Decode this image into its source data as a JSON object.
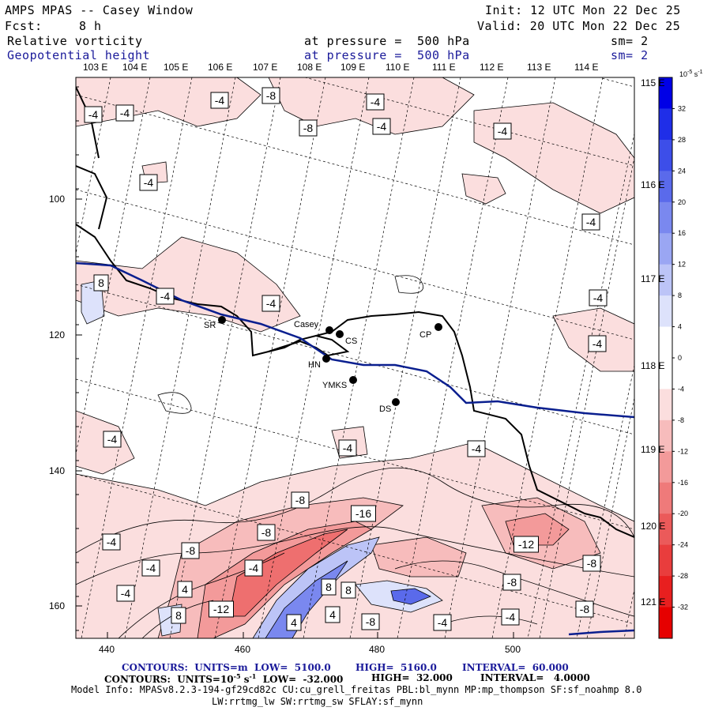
{
  "header": {
    "title": "AMPS MPAS -- Casey Window",
    "init": "Init: 12 UTC Mon 22 Dec 25",
    "fcst_label": "Fcst:",
    "fcst_value": "8 h",
    "valid": "Valid: 20 UTC Mon 22 Dec 25",
    "field1": "Relative vorticity",
    "field1_level": "at pressure =  500 hPa",
    "field1_sm": "sm= 2",
    "field2": "Geopotential height",
    "field2_level": "at pressure =  500 hPa",
    "field2_sm": "sm= 2"
  },
  "lon_top": [
    "103 E",
    "104 E",
    "105 E",
    "106 E",
    "107 E",
    "108 E",
    "109 E",
    "110 E",
    "111 E",
    "112 E",
    "113 E",
    "114 E"
  ],
  "lon_right": [
    "115 E",
    "116 E",
    "117 E",
    "118 E",
    "119 E",
    "120 E",
    "121 E"
  ],
  "x_ticks": [
    "440",
    "460",
    "480",
    "500"
  ],
  "y_ticks": [
    "100",
    "120",
    "140",
    "160"
  ],
  "stations": [
    {
      "name": "SR"
    },
    {
      "name": "Casey"
    },
    {
      "name": "CS"
    },
    {
      "name": "HN"
    },
    {
      "name": "YMKS"
    },
    {
      "name": "DS"
    },
    {
      "name": "CP"
    }
  ],
  "contour_labels": [
    "-4",
    "-8",
    "-12",
    "-16",
    "4",
    "8",
    "8"
  ],
  "colorbar": {
    "units": "10",
    "units_exp": "-5",
    "units_suffix": " s",
    "units_suffix_exp": "-1",
    "ticks": [
      "32",
      "28",
      "24",
      "20",
      "16",
      "12",
      "8",
      "4",
      "0",
      "-4",
      "-8",
      "-12",
      "-16",
      "-20",
      "-24",
      "-28",
      "-32"
    ],
    "colors": [
      "#0000e6",
      "#1f2ee8",
      "#3d4ee9",
      "#5a6aeb",
      "#7a88ef",
      "#9aa6f3",
      "#bcc4f7",
      "#dde2fb",
      "#ffffff",
      "#ffffff",
      "#fbdede",
      "#f7bcbc",
      "#f39a9a",
      "#ef7a7a",
      "#eb5a5a",
      "#e93d3d",
      "#e81f1f",
      "#e60000"
    ]
  },
  "footer": {
    "c1_a": "CONTOURS:  UNITS=m  LOW=  5100.0",
    "c1_b": "HIGH=  5160.0",
    "c1_c": "INTERVAL=  60.000",
    "c2_a": "CONTOURS:  UNITS=10",
    "c2_exp": "-5",
    "c2_s": " s",
    "c2_s_exp": "-1",
    "c2_b": "  LOW=  -32.000",
    "c2_c": "HIGH=  32.000",
    "c2_d": "INTERVAL=   4.0000",
    "info1": "Model Info: MPASv8.2.3-194-gf29cd82c CU:cu_grell_freitas PBL:bl_mynn MP:mp_thompson SF:sf_noahmp 8.0",
    "info2": "LW:rrtmg_lw SW:rrtmg_sw SFLAY:sf_mynn"
  }
}
